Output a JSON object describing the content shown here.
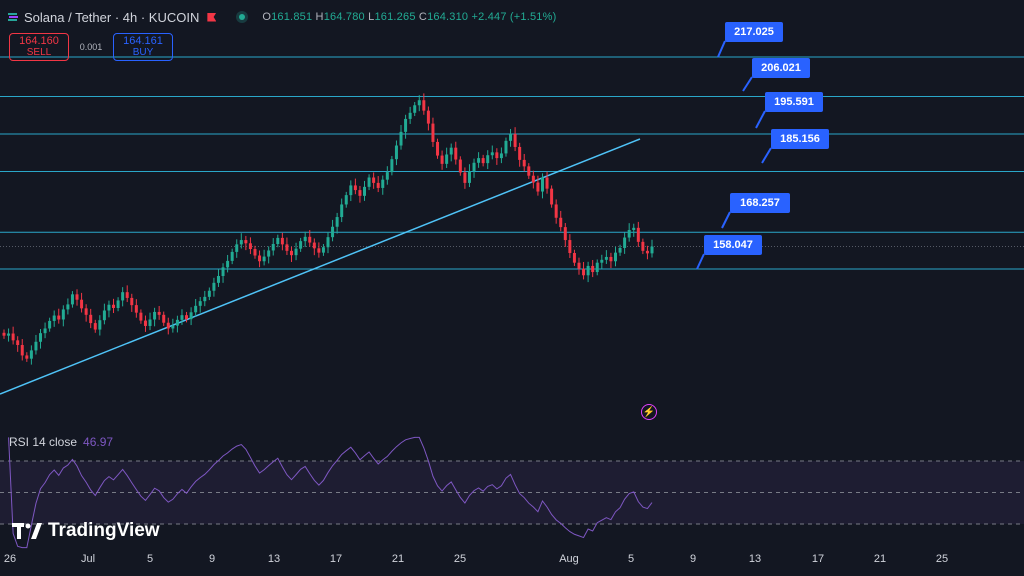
{
  "header": {
    "title": "Solana / Tether · 4h · KUCOIN",
    "ohlc": {
      "o_label": "O",
      "o": "161.851",
      "h_label": "H",
      "h": "164.780",
      "l_label": "L",
      "l": "161.265",
      "c_label": "C",
      "c": "164.310",
      "change": "+2.447 (+1.51%)"
    },
    "status_icon": "market-open-dot-icon",
    "flag_icon": "flag-icon"
  },
  "trade": {
    "sell_price": "164.160",
    "sell_label": "SELL",
    "spread": "0.001",
    "buy_price": "164.161",
    "buy_label": "BUY"
  },
  "price_labels": [
    "217.025",
    "206.021",
    "195.591",
    "185.156",
    "168.257",
    "158.047"
  ],
  "rsi": {
    "label": "RSI 14 close",
    "value": "46.97"
  },
  "logo": {
    "text": "TradingView"
  },
  "x_axis": [
    "26",
    "Jul",
    "5",
    "9",
    "13",
    "17",
    "21",
    "25",
    "Aug",
    "5",
    "9",
    "13",
    "17",
    "21",
    "25"
  ],
  "colors": {
    "bg": "#131722",
    "up": "#22ab94",
    "down": "#f23645",
    "level": "#2aa7c9",
    "trend": "#4fc3f7",
    "rsi": "#7e57c2",
    "label": "#2962ff"
  },
  "chart_data": {
    "type": "candlestick",
    "series_ohlc_close": [
      139.5,
      140.1,
      138.2,
      136.9,
      134.0,
      133.1,
      135.4,
      137.8,
      140.2,
      141.5,
      143.6,
      145.1,
      144.0,
      146.8,
      148.2,
      151.0,
      149.5,
      147.1,
      145.3,
      143.0,
      141.2,
      143.8,
      146.5,
      148.1,
      147.2,
      149.3,
      151.6,
      150.0,
      148.0,
      145.9,
      143.7,
      142.2,
      144.0,
      146.1,
      145.3,
      143.1,
      141.5,
      142.3,
      143.9,
      145.2,
      144.1,
      146.0,
      147.8,
      149.1,
      150.3,
      152.0,
      154.2,
      156.1,
      158.5,
      160.3,
      162.8,
      164.9,
      166.1,
      165.2,
      163.6,
      161.8,
      160.2,
      161.5,
      163.2,
      165.0,
      166.7,
      164.9,
      163.1,
      161.9,
      163.7,
      165.8,
      167.0,
      165.4,
      163.8,
      162.6,
      164.1,
      166.9,
      169.8,
      172.5,
      176.0,
      178.6,
      181.3,
      180.0,
      178.4,
      180.9,
      183.5,
      182.0,
      180.6,
      182.9,
      185.0,
      188.6,
      192.4,
      196.2,
      199.8,
      201.5,
      203.6,
      205.0,
      202.1,
      198.5,
      193.4,
      189.6,
      187.3,
      189.9,
      191.8,
      188.5,
      184.9,
      182.0,
      185.3,
      187.6,
      188.9,
      187.5,
      189.7,
      190.5,
      188.9,
      190.2,
      193.7,
      195.6,
      192.0,
      188.4,
      186.6,
      184.0,
      182.1,
      179.6,
      183.5,
      180.4,
      176.0,
      172.3,
      169.7,
      166.1,
      162.5,
      159.8,
      158.1,
      156.3,
      158.9,
      157.2,
      159.8,
      160.6,
      161.4,
      160.2,
      162.6,
      163.9,
      166.8,
      168.9,
      169.5,
      165.6,
      163.1,
      162.4,
      164.3
    ],
    "levels": [
      217.025,
      206.021,
      195.591,
      185.156,
      168.257,
      158.047
    ],
    "current_price": 164.31,
    "rsi_bands": [
      70,
      50,
      30
    ],
    "x_ticks": [
      "26",
      "Jul",
      "5",
      "9",
      "13",
      "17",
      "21",
      "25",
      "Aug",
      "5",
      "9",
      "13",
      "17",
      "21",
      "25"
    ]
  }
}
